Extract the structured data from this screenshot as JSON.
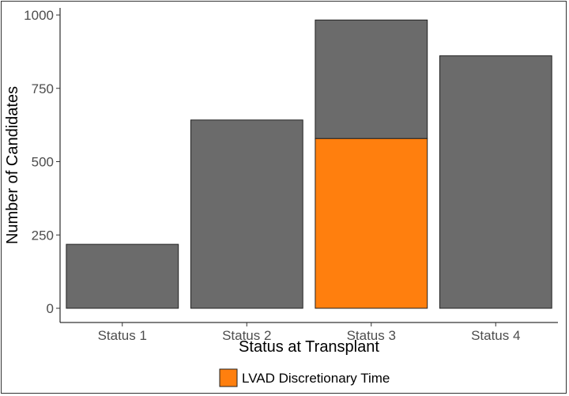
{
  "chart_data": {
    "type": "bar",
    "stacked": true,
    "categories": [
      "Status 1",
      "Status 2",
      "Status 3",
      "Status 4"
    ],
    "series": [
      {
        "name": "",
        "color": "#6b6b6b",
        "values": [
          218,
          642,
          404,
          861
        ]
      },
      {
        "name": "LVAD Discretionary Time",
        "color": "#ff7f0e",
        "values": [
          0,
          0,
          579,
          0
        ]
      }
    ],
    "xlabel": "Status at Transplant",
    "ylabel": "Number of Candidates",
    "ylim": [
      0,
      1000
    ],
    "yticks": [
      0,
      250,
      500,
      750,
      1000
    ],
    "grid": false,
    "legend": {
      "position": "bottom",
      "entries": [
        "LVAD Discretionary Time"
      ]
    }
  }
}
